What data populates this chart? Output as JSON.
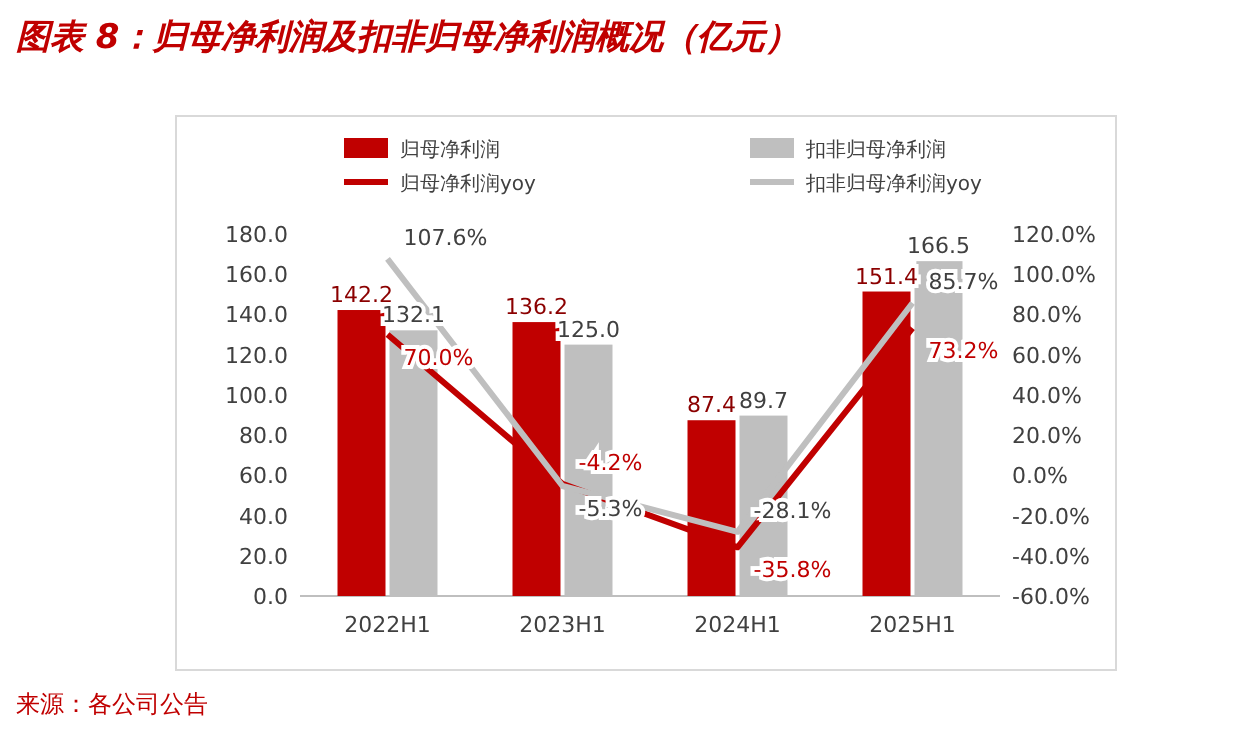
{
  "chart_data": {
    "type": "bar",
    "title": "图表 8：归母净利润及扣非归母净利润概况（亿元）",
    "categories": [
      "2022H1",
      "2023H1",
      "2024H1",
      "2025H1"
    ],
    "series": [
      {
        "name": "归母净利润",
        "color": "#c00000",
        "values": [
          142.2,
          136.2,
          87.4,
          151.4
        ],
        "value_labels": [
          "142.2",
          "136.2",
          "87.4",
          "151.4"
        ]
      },
      {
        "name": "扣非归母净利润",
        "color": "#bfbfbf",
        "values": [
          132.1,
          125.0,
          89.7,
          166.5
        ],
        "value_labels": [
          "132.1",
          "125.0",
          "89.7",
          "166.5"
        ]
      },
      {
        "name": "归母净利润yoy",
        "type": "line",
        "axis": "y2",
        "color": "#c00000",
        "values": [
          70.0,
          -4.2,
          -35.8,
          73.2
        ],
        "value_labels": [
          "70.0%",
          "-4.2%",
          "-35.8%",
          "73.2%"
        ]
      },
      {
        "name": "扣非归母净利润yoy",
        "type": "line",
        "axis": "y2",
        "color": "#bfbfbf",
        "values": [
          107.6,
          -5.3,
          -28.1,
          85.7
        ],
        "value_labels": [
          "107.6%",
          "-5.3%",
          "-28.1%",
          "85.7%"
        ]
      }
    ],
    "ylim": [
      0,
      180
    ],
    "yticks": [
      {
        "value": 0,
        "label": "0.0"
      },
      {
        "value": 20,
        "label": "20.0"
      },
      {
        "value": 40,
        "label": "40.0"
      },
      {
        "value": 60,
        "label": "60.0"
      },
      {
        "value": 80,
        "label": "80.0"
      },
      {
        "value": 100,
        "label": "100.0"
      },
      {
        "value": 120,
        "label": "120.0"
      },
      {
        "value": 140,
        "label": "140.0"
      },
      {
        "value": 160,
        "label": "160.0"
      },
      {
        "value": 180,
        "label": "180.0"
      }
    ],
    "y2lim": [
      -60,
      120
    ],
    "y2ticks": [
      {
        "value": -60,
        "label": "-60.0%"
      },
      {
        "value": -40,
        "label": "-40.0%"
      },
      {
        "value": -20,
        "label": "-20.0%"
      },
      {
        "value": 0,
        "label": "0.0%"
      },
      {
        "value": 20,
        "label": "20.0%"
      },
      {
        "value": 40,
        "label": "40.0%"
      },
      {
        "value": 60,
        "label": "60.0%"
      },
      {
        "value": 80,
        "label": "80.0%"
      },
      {
        "value": 100,
        "label": "100.0%"
      },
      {
        "value": 120,
        "label": "120.0%"
      }
    ],
    "legend": "top",
    "grid": false,
    "marker": "none",
    "annotations": [
      "来源：各公司公告"
    ]
  }
}
